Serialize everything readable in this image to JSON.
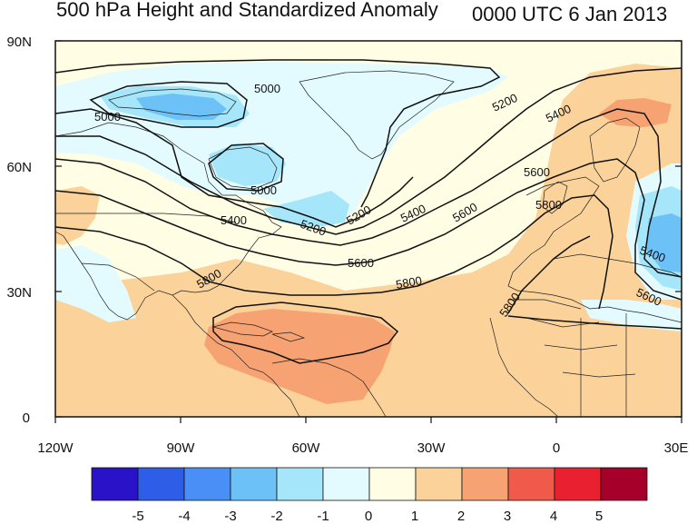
{
  "title": "500 hPa Height and Standardized Anomaly",
  "valid_time": "0000 UTC 6 Jan 2013",
  "lat_labels": [
    "90N",
    "60N",
    "30N",
    "0"
  ],
  "lon_labels": [
    "120W",
    "90W",
    "60W",
    "30W",
    "0",
    "30E"
  ],
  "contour_labels": [
    "5000",
    "5000",
    "5000",
    "5200",
    "5200",
    "5200",
    "5400",
    "5400",
    "5400",
    "5400",
    "5600",
    "5600",
    "5600",
    "5600",
    "5800",
    "5800",
    "5800",
    "5800"
  ],
  "colorbar": {
    "labels": [
      "-5",
      "-4",
      "-3",
      "-2",
      "-1",
      "0",
      "1",
      "2",
      "3",
      "4",
      "5"
    ],
    "colors": [
      "#2a12c9",
      "#2e5de8",
      "#4a8ff5",
      "#6cc2f7",
      "#a5e6fb",
      "#e3fbff",
      "#fffde4",
      "#fbd39a",
      "#f6a273",
      "#f05a4a",
      "#e8202f",
      "#a6002a"
    ]
  },
  "fill_colors": {
    "ocean_base": "#fffde4",
    "neg1": "#e3fbff",
    "neg2": "#a5e6fb",
    "neg3": "#6cc2f7",
    "pos1": "#fbd39a",
    "pos2": "#f6a273"
  }
}
